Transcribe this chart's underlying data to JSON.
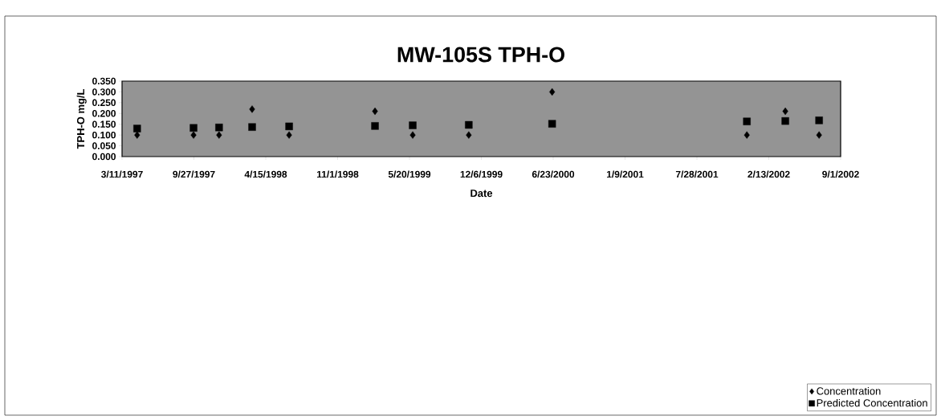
{
  "chart_data": {
    "type": "scatter",
    "title": "MW-105S TPH-O",
    "xlabel": "Date",
    "ylabel": "TPH-O mg/L",
    "xlim": [
      "1997-03-11",
      "2002-09-01"
    ],
    "xticks": [
      {
        "value": "1997-03-11",
        "label": "3/11/1997"
      },
      {
        "value": "1997-09-27",
        "label": "9/27/1997"
      },
      {
        "value": "1998-04-15",
        "label": "4/15/1998"
      },
      {
        "value": "1998-11-01",
        "label": "11/1/1998"
      },
      {
        "value": "1999-05-20",
        "label": "5/20/1999"
      },
      {
        "value": "1999-12-06",
        "label": "12/6/1999"
      },
      {
        "value": "2000-06-23",
        "label": "6/23/2000"
      },
      {
        "value": "2001-01-09",
        "label": "1/9/2001"
      },
      {
        "value": "2001-07-28",
        "label": "7/28/2001"
      },
      {
        "value": "2002-02-13",
        "label": "2/13/2002"
      },
      {
        "value": "2002-09-01",
        "label": "9/1/2002"
      }
    ],
    "ylim": [
      0,
      0.35
    ],
    "yticks": [
      {
        "value": 0,
        "label": "0.000"
      },
      {
        "value": 0.05,
        "label": "0.050"
      },
      {
        "value": 0.1,
        "label": "0.100"
      },
      {
        "value": 0.15,
        "label": "0.150"
      },
      {
        "value": 0.2,
        "label": "0.200"
      },
      {
        "value": 0.25,
        "label": "0.250"
      },
      {
        "value": 0.3,
        "label": "0.300"
      },
      {
        "value": 0.35,
        "label": "0.350"
      }
    ],
    "x": [
      "1997-04-22",
      "1997-09-26",
      "1997-12-06",
      "1998-03-08",
      "1998-06-19",
      "1999-02-13",
      "1999-05-29",
      "1999-11-01",
      "2000-06-20",
      "2001-12-14",
      "2002-03-31",
      "2002-07-03"
    ],
    "series": [
      {
        "name": "Concentration",
        "color": "#000000",
        "marker": "diamond",
        "values": [
          0.1,
          0.1,
          0.1,
          0.22,
          0.1,
          0.21,
          0.1,
          0.1,
          0.3,
          0.1,
          0.21,
          0.1
        ]
      },
      {
        "name": "Predicted Concentration",
        "color": "#000000",
        "marker": "square",
        "values": [
          0.13,
          0.133,
          0.135,
          0.137,
          0.14,
          0.142,
          0.145,
          0.147,
          0.152,
          0.163,
          0.165,
          0.168
        ]
      }
    ],
    "legend": "bottom right"
  }
}
